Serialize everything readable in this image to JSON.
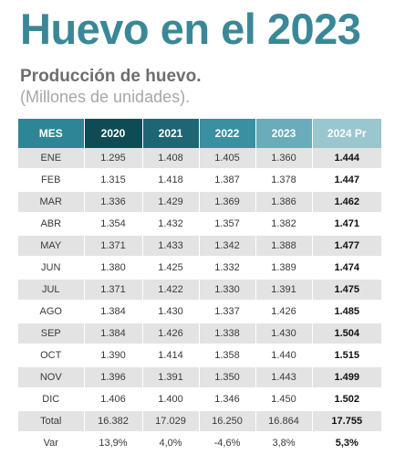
{
  "title": "Huevo en el 2023",
  "subtitle": "Producción de huevo.",
  "unit": "(Millones de unidades).",
  "table": {
    "headers": [
      "MES",
      "2020",
      "2021",
      "2022",
      "2023",
      "2024 Pr"
    ],
    "rows": [
      [
        "ENE",
        "1.295",
        "1.408",
        "1.405",
        "1.360",
        "1.444"
      ],
      [
        "FEB",
        "1.315",
        "1.418",
        "1.387",
        "1.378",
        "1.447"
      ],
      [
        "MAR",
        "1.336",
        "1.429",
        "1.369",
        "1.386",
        "1.462"
      ],
      [
        "ABR",
        "1.354",
        "1.432",
        "1.357",
        "1.382",
        "1.471"
      ],
      [
        "MAY",
        "1.371",
        "1.433",
        "1.342",
        "1.388",
        "1.477"
      ],
      [
        "JUN",
        "1.380",
        "1.425",
        "1.332",
        "1.389",
        "1.474"
      ],
      [
        "JUL",
        "1.371",
        "1.422",
        "1.330",
        "1.391",
        "1.475"
      ],
      [
        "AGO",
        "1.384",
        "1.430",
        "1.337",
        "1.426",
        "1.485"
      ],
      [
        "SEP",
        "1.384",
        "1.426",
        "1.338",
        "1.430",
        "1.504"
      ],
      [
        "OCT",
        "1.390",
        "1.414",
        "1.358",
        "1.440",
        "1.515"
      ],
      [
        "NOV",
        "1.396",
        "1.391",
        "1.350",
        "1.443",
        "1.499"
      ],
      [
        "DIC",
        "1.406",
        "1.400",
        "1.346",
        "1.450",
        "1.502"
      ],
      [
        "Total",
        "16.382",
        "17.029",
        "16.250",
        "16.864",
        "17.755"
      ],
      [
        "Var",
        "13,9%",
        "4,0%",
        "-4,6%",
        "3,8%",
        "5,3%"
      ]
    ]
  },
  "colors": {
    "title": "#3a8897",
    "header_mes": "#2e8596",
    "header_2020": "#0e4b55",
    "header_2021": "#1e6674",
    "header_2022": "#3a8fa0",
    "header_2023": "#6aacb9",
    "header_2024": "#99c6cf",
    "row_stripe": "#e3e3e3"
  }
}
